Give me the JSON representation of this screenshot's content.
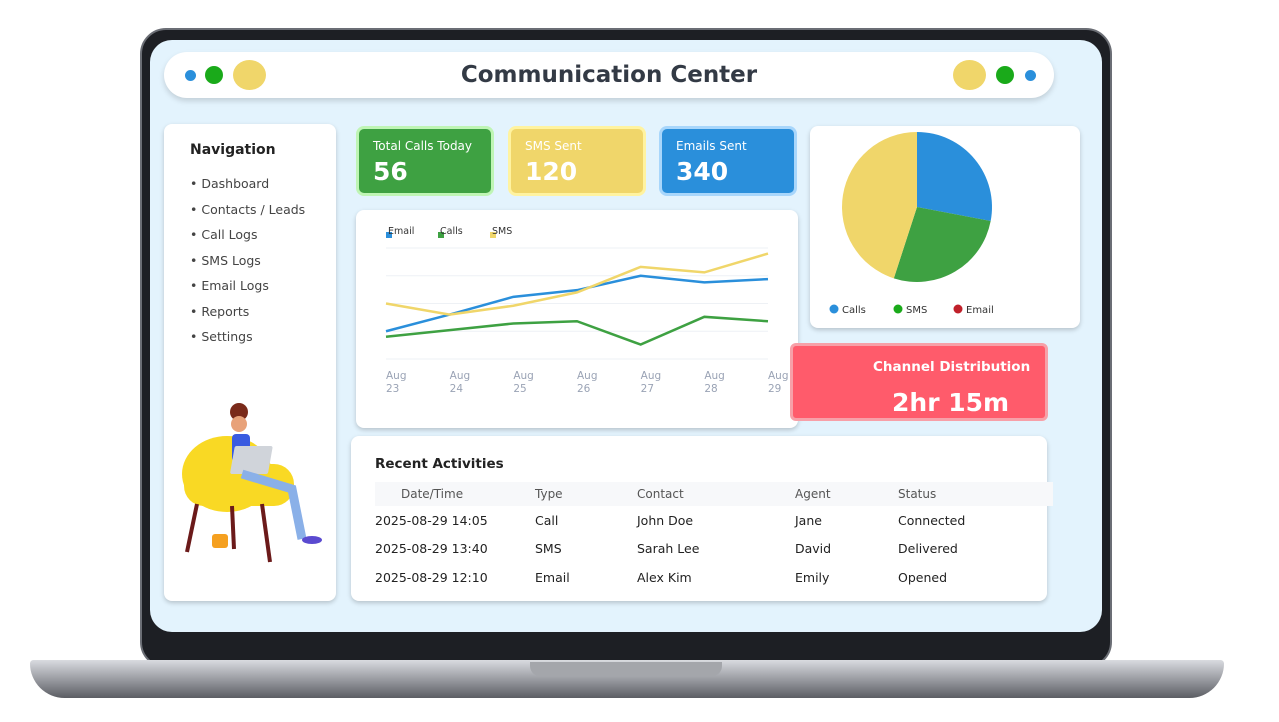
{
  "header": {
    "title": "Communication Center"
  },
  "navigation": {
    "title": "Navigation",
    "items": [
      "Dashboard",
      "Contacts / Leads",
      "Call Logs",
      "SMS Logs",
      "Email Logs",
      "Reports",
      "Settings"
    ]
  },
  "stats": [
    {
      "label": "Total Calls Today",
      "value": "56",
      "color": "#3ea142"
    },
    {
      "label": "SMS Sent",
      "value": "120",
      "color": "#f0d66a"
    },
    {
      "label": "Emails Sent",
      "value": "340",
      "color": "#2a8fdb"
    }
  ],
  "chart_data": [
    {
      "type": "line",
      "title": "",
      "x": [
        "Aug 23",
        "Aug 24",
        "Aug 25",
        "Aug 26",
        "Aug 27",
        "Aug 28",
        "Aug 29"
      ],
      "ylim": [
        0,
        100
      ],
      "grid": true,
      "legend": "top-left",
      "series": [
        {
          "name": "Email",
          "color": "#2a8fdb",
          "values": [
            25,
            40,
            56,
            62,
            75,
            69,
            72
          ]
        },
        {
          "name": "Calls",
          "color": "#3ea142",
          "values": [
            20,
            26,
            32,
            34,
            13,
            38,
            34
          ]
        },
        {
          "name": "SMS",
          "color": "#f0d66a",
          "values": [
            50,
            40,
            48,
            60,
            83,
            78,
            95
          ]
        }
      ]
    },
    {
      "type": "pie",
      "legend": "bottom",
      "labels": [
        "Calls",
        "SMS",
        "Email"
      ],
      "legend_colors": [
        "#2a8fdb",
        "#1aaa1a",
        "#c0202a"
      ],
      "slices": [
        {
          "value": 28,
          "color": "#2a8fdb"
        },
        {
          "value": 27,
          "color": "#3ea142"
        },
        {
          "value": 45,
          "color": "#f0d66a"
        }
      ]
    }
  ],
  "channel": {
    "title": "Channel Distribution",
    "value": "2hr 15m"
  },
  "activities": {
    "title": "Recent Activities",
    "columns": [
      "Date/Time",
      "Type",
      "Contact",
      "Agent",
      "Status"
    ],
    "rows": [
      [
        "2025-08-29 14:05",
        "Call",
        "John Doe",
        "Jane",
        "Connected"
      ],
      [
        "2025-08-29 13:40",
        "SMS",
        "Sarah Lee",
        "David",
        "Delivered"
      ],
      [
        "2025-08-29 12:10",
        "Email",
        "Alex Kim",
        "Emily",
        "Opened"
      ]
    ]
  }
}
